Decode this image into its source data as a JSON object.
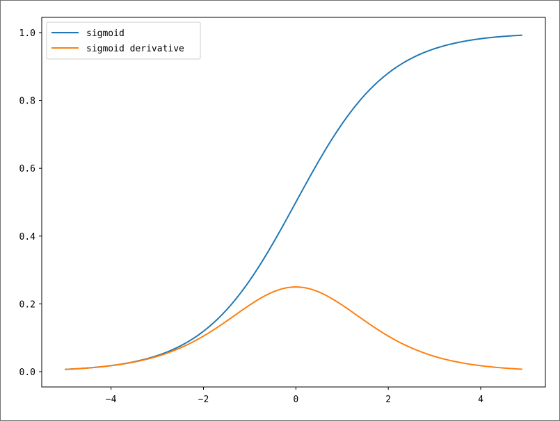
{
  "chart_data": {
    "type": "line",
    "title": "",
    "xlabel": "",
    "ylabel": "",
    "xlim": [
      -5.5,
      5.4
    ],
    "ylim": [
      -0.045,
      1.045
    ],
    "x_ticks": [
      -4,
      -2,
      0,
      2,
      4
    ],
    "x_tick_labels": [
      "−4",
      "−2",
      "0",
      "2",
      "4"
    ],
    "y_ticks": [
      0.0,
      0.2,
      0.4,
      0.6,
      0.8,
      1.0
    ],
    "y_tick_labels": [
      "0.0",
      "0.2",
      "0.4",
      "0.6",
      "0.8",
      "1.0"
    ],
    "grid": false,
    "legend_position": "top-left",
    "x_range": [
      -5.0,
      4.9
    ],
    "x_step": 0.1,
    "series": [
      {
        "name": "sigmoid",
        "color": "#1f77b4"
      },
      {
        "name": "sigmoid derivative",
        "color": "#ff7f0e"
      }
    ]
  }
}
